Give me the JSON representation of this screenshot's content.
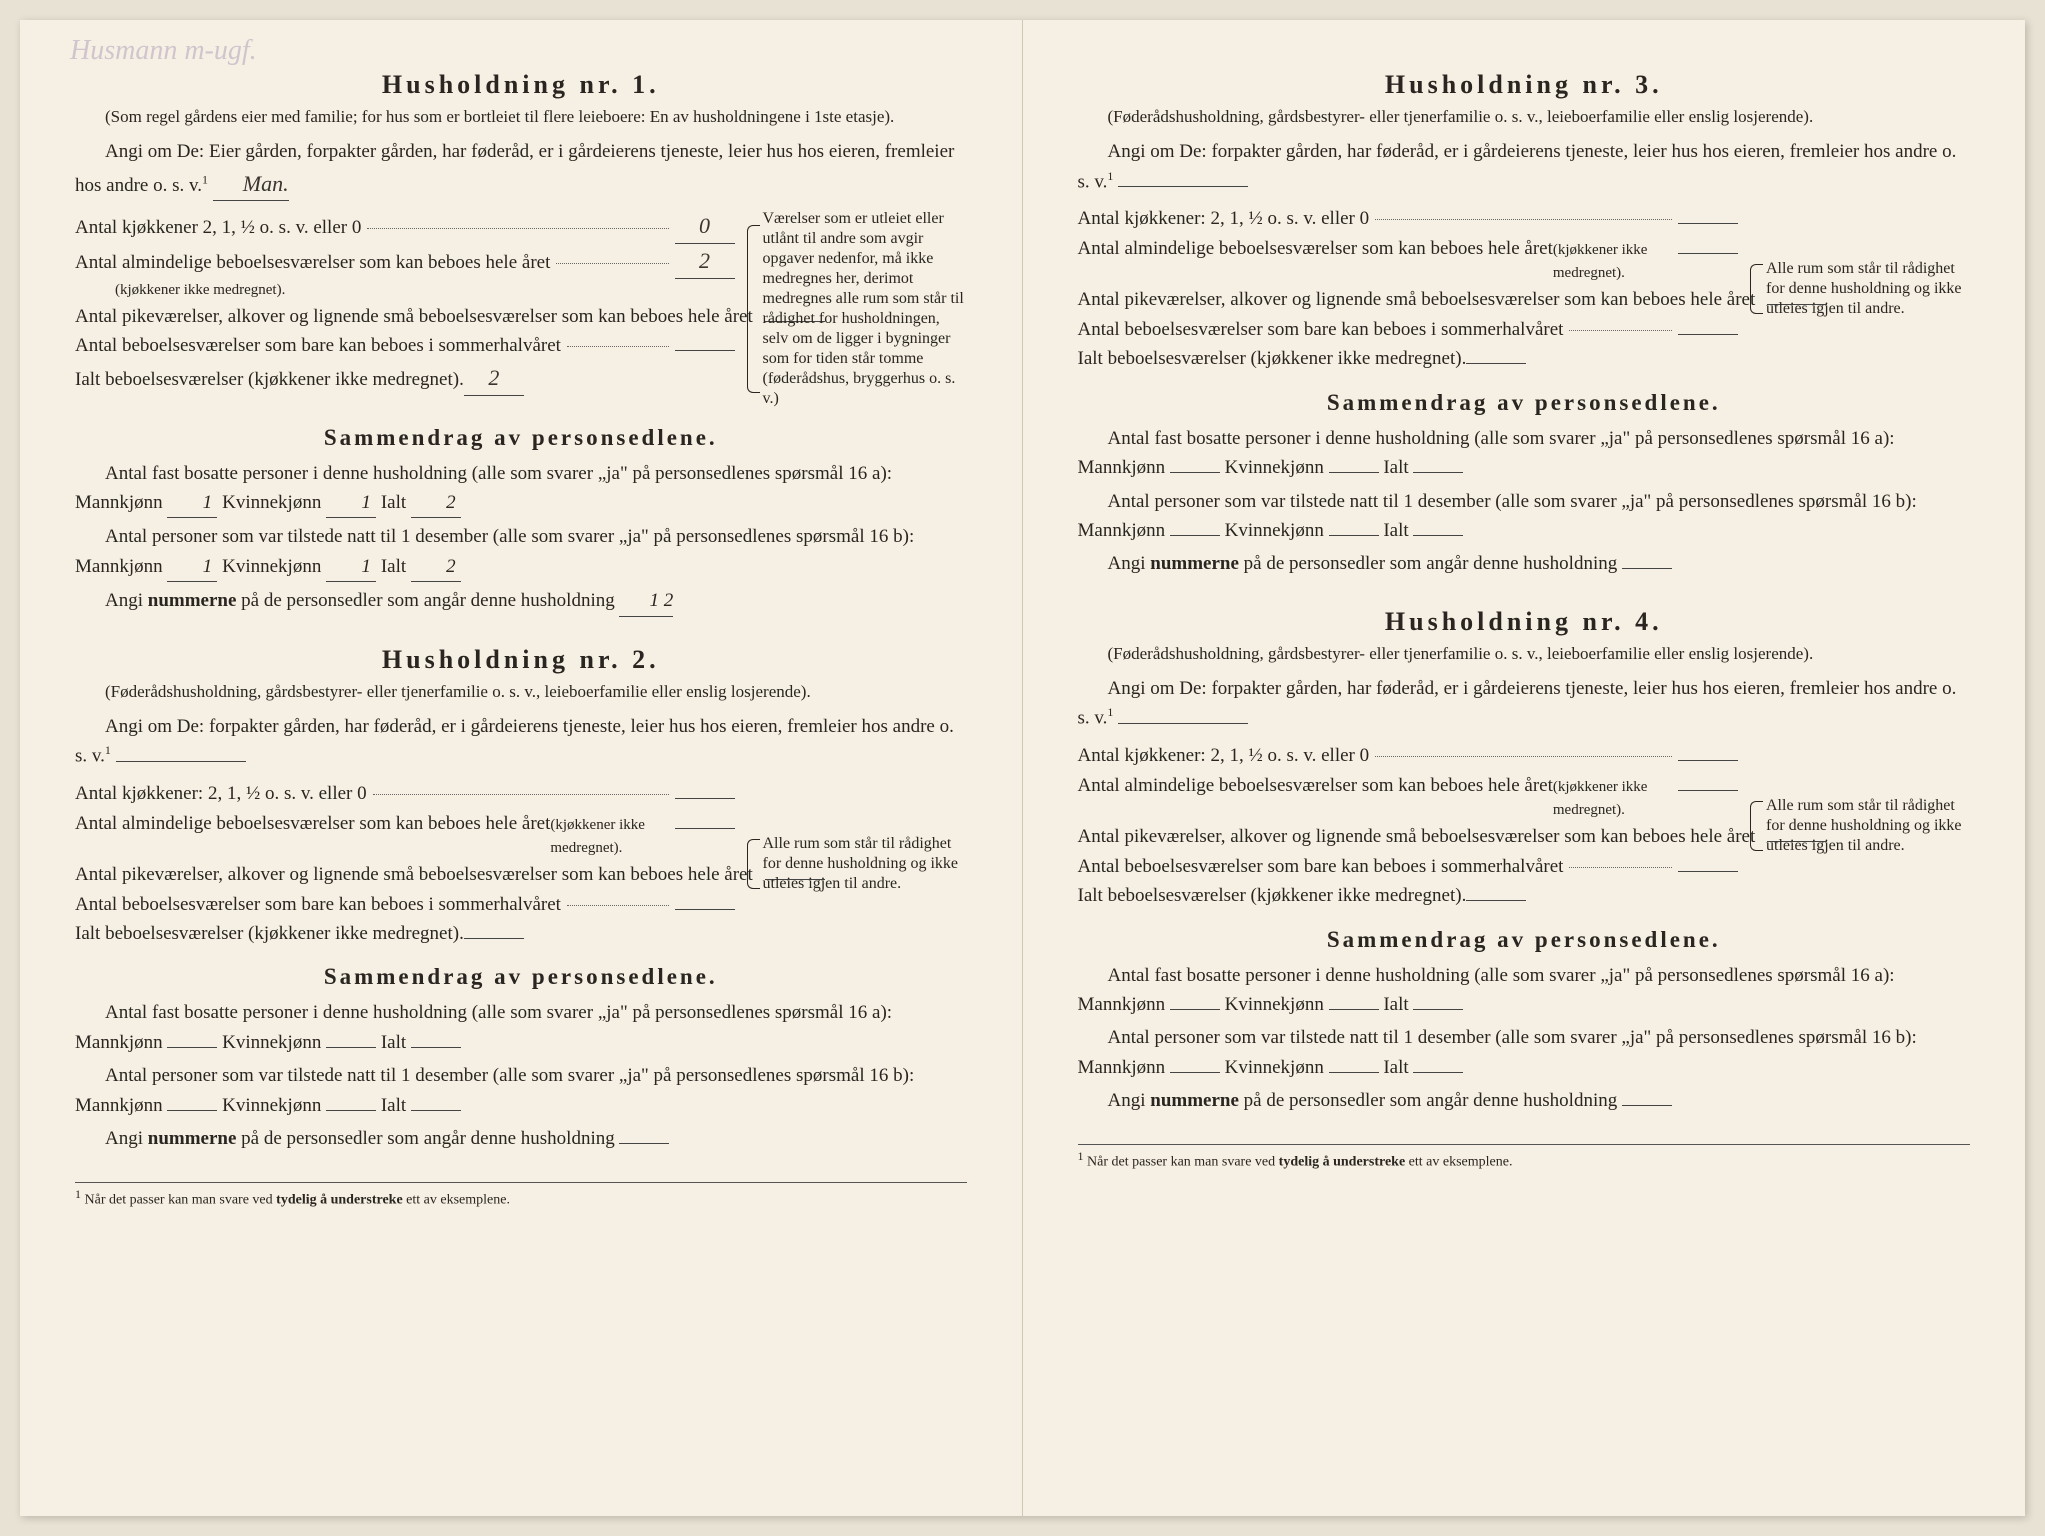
{
  "handwriting_note": "Husmann m-ugf.",
  "households": [
    {
      "title": "Husholdning nr. 1.",
      "subtitle": "(Som regel gårdens eier med familie; for hus som er bortleiet til flere leieboere: En av husholdningene i 1ste etasje).",
      "instruction_prefix": "Angi om De:",
      "instruction_body": "Eier gården, forpakter gården, har føderåd, er i gårdeierens tjeneste, leier hus hos eieren, fremleier hos andre o. s. v.",
      "instruction_answer": "Man.",
      "kitchens_label": "Antal kjøkkener 2, 1, ½ o. s. v. eller 0",
      "kitchens_value": "0",
      "rooms_year_label": "Antal almindelige beboelsesværelser som kan beboes hele året",
      "rooms_year_note": "(kjøkkener ikke medregnet).",
      "rooms_year_value": "2",
      "rooms_maid_label": "Antal pikeværelser, alkover og lignende små beboelsesværelser som kan beboes hele året",
      "rooms_maid_value": "",
      "rooms_summer_label": "Antal beboelsesværelser som bare kan beboes i sommerhalvåret",
      "rooms_summer_value": "",
      "rooms_total_label": "Ialt beboelsesværelser (kjøkkener ikke medregnet).",
      "rooms_total_value": "2",
      "side_note": "Værelser som er utleiet eller utlånt til andre som avgir opgaver nedenfor, må ikke medregnes her, derimot medregnes alle rum som står til rådighet for husholdningen, selv om de ligger i bygninger som for tiden står tomme (føderådshus, bryggerhus o. s. v.)",
      "sammendrag_title": "Sammendrag av personsedlene.",
      "resident_label": "Antal fast bosatte personer i denne husholdning (alle som svarer „ja\" på personsedlenes spørsmål 16 a):",
      "mann_label": "Mannkjønn",
      "kvinne_label": "Kvinnekjønn",
      "ialt_label": "Ialt",
      "resident_m": "1",
      "resident_k": "1",
      "resident_total": "2",
      "present_label": "Antal personer som var tilstede natt til 1 desember (alle som svarer „ja\" på personsedlenes spørsmål 16 b):",
      "present_m": "1",
      "present_k": "1",
      "present_total": "2",
      "numbers_label": "Angi nummerne på de personsedler som angår denne husholdning",
      "numbers_value": "1  2"
    },
    {
      "title": "Husholdning nr. 2.",
      "subtitle": "(Føderådshusholdning, gårdsbestyrer- eller tjenerfamilie o. s. v., leieboerfamilie eller enslig losjerende).",
      "instruction_prefix": "Angi om De:",
      "instruction_body": "forpakter gården, har føderåd, er i gårdeierens tjeneste, leier hus hos eieren, fremleier hos andre o. s. v.",
      "instruction_answer": "",
      "kitchens_label": "Antal kjøkkener: 2, 1, ½ o. s. v. eller 0",
      "kitchens_value": "",
      "rooms_year_label": "Antal almindelige beboelsesværelser som kan beboes hele året",
      "rooms_year_note": "(kjøkkener ikke medregnet).",
      "rooms_year_value": "",
      "rooms_maid_label": "Antal pikeværelser, alkover og lignende små beboelsesværelser som kan beboes hele året",
      "rooms_maid_value": "",
      "rooms_summer_label": "Antal beboelsesværelser som bare kan beboes i sommerhalvåret",
      "rooms_summer_value": "",
      "rooms_total_label": "Ialt beboelsesværelser (kjøkkener ikke medregnet).",
      "rooms_total_value": "",
      "side_note": "Alle rum som står til rådighet for denne husholdning og ikke utleies igjen til andre.",
      "sammendrag_title": "Sammendrag av personsedlene.",
      "resident_label": "Antal fast bosatte personer i denne husholdning (alle som svarer „ja\" på personsedlenes spørsmål 16 a):",
      "mann_label": "Mannkjønn",
      "kvinne_label": "Kvinnekjønn",
      "ialt_label": "Ialt",
      "resident_m": "",
      "resident_k": "",
      "resident_total": "",
      "present_label": "Antal personer som var tilstede natt til 1 desember (alle som svarer „ja\" på personsedlenes spørsmål 16 b):",
      "present_m": "",
      "present_k": "",
      "present_total": "",
      "numbers_label": "Angi nummerne på de personsedler som angår denne husholdning",
      "numbers_value": ""
    },
    {
      "title": "Husholdning nr. 3.",
      "subtitle": "(Føderådshusholdning, gårdsbestyrer- eller tjenerfamilie o. s. v., leieboerfamilie eller enslig losjerende).",
      "instruction_prefix": "Angi om De:",
      "instruction_body": "forpakter gården, har føderåd, er i gårdeierens tjeneste, leier hus hos eieren, fremleier hos andre o. s. v.",
      "instruction_answer": "",
      "kitchens_label": "Antal kjøkkener: 2, 1, ½ o. s. v. eller 0",
      "kitchens_value": "",
      "rooms_year_label": "Antal almindelige beboelsesværelser som kan beboes hele året",
      "rooms_year_note": "(kjøkkener ikke medregnet).",
      "rooms_year_value": "",
      "rooms_maid_label": "Antal pikeværelser, alkover og lignende små beboelsesværelser som kan beboes hele året",
      "rooms_maid_value": "",
      "rooms_summer_label": "Antal beboelsesværelser som bare kan beboes i sommerhalvåret",
      "rooms_summer_value": "",
      "rooms_total_label": "Ialt beboelsesværelser (kjøkkener ikke medregnet).",
      "rooms_total_value": "",
      "side_note": "Alle rum som står til rådighet for denne husholdning og ikke utleies igjen til andre.",
      "sammendrag_title": "Sammendrag av personsedlene.",
      "resident_label": "Antal fast bosatte personer i denne husholdning (alle som svarer „ja\" på personsedlenes spørsmål 16 a):",
      "mann_label": "Mannkjønn",
      "kvinne_label": "Kvinnekjønn",
      "ialt_label": "Ialt",
      "resident_m": "",
      "resident_k": "",
      "resident_total": "",
      "present_label": "Antal personer som var tilstede natt til 1 desember (alle som svarer „ja\" på personsedlenes spørsmål 16 b):",
      "present_m": "",
      "present_k": "",
      "present_total": "",
      "numbers_label": "Angi nummerne på de personsedler som angår denne husholdning",
      "numbers_value": ""
    },
    {
      "title": "Husholdning nr. 4.",
      "subtitle": "(Føderådshusholdning, gårdsbestyrer- eller tjenerfamilie o. s. v., leieboerfamilie eller enslig losjerende).",
      "instruction_prefix": "Angi om De:",
      "instruction_body": "forpakter gården, har føderåd, er i gårdeierens tjeneste, leier hus hos eieren, fremleier hos andre o. s. v.",
      "instruction_answer": "",
      "kitchens_label": "Antal kjøkkener: 2, 1, ½ o. s. v. eller 0",
      "kitchens_value": "",
      "rooms_year_label": "Antal almindelige beboelsesværelser som kan beboes hele året",
      "rooms_year_note": "(kjøkkener ikke medregnet).",
      "rooms_year_value": "",
      "rooms_maid_label": "Antal pikeværelser, alkover og lignende små beboelsesværelser som kan beboes hele året",
      "rooms_maid_value": "",
      "rooms_summer_label": "Antal beboelsesværelser som bare kan beboes i sommerhalvåret",
      "rooms_summer_value": "",
      "rooms_total_label": "Ialt beboelsesværelser (kjøkkener ikke medregnet).",
      "rooms_total_value": "",
      "side_note": "Alle rum som står til rådighet for denne husholdning og ikke utleies igjen til andre.",
      "sammendrag_title": "Sammendrag av personsedlene.",
      "resident_label": "Antal fast bosatte personer i denne husholdning (alle som svarer „ja\" på personsedlenes spørsmål 16 a):",
      "mann_label": "Mannkjønn",
      "kvinne_label": "Kvinnekjønn",
      "ialt_label": "Ialt",
      "resident_m": "",
      "resident_k": "",
      "resident_total": "",
      "present_label": "Antal personer som var tilstede natt til 1 desember (alle som svarer „ja\" på personsedlenes spørsmål 16 b):",
      "present_m": "",
      "present_k": "",
      "present_total": "",
      "numbers_label": "Angi nummerne på de personsedler som angår denne husholdning",
      "numbers_value": ""
    }
  ],
  "footnote_num": "1",
  "footnote_text": "Når det passer kan man svare ved tydelig å understreke ett av eksemplene.",
  "sup1": "1"
}
